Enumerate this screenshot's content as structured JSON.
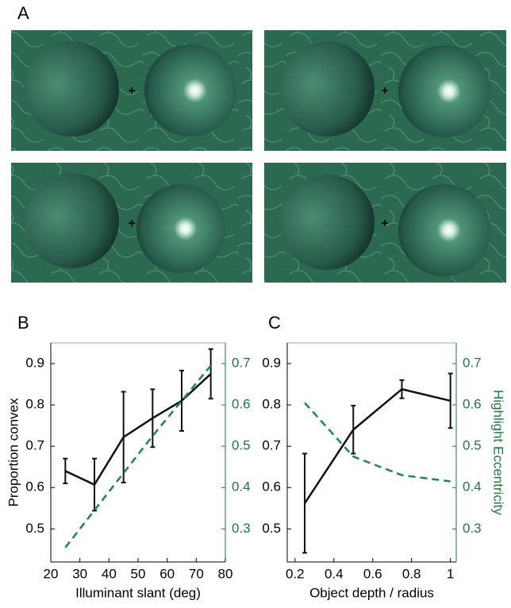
{
  "panel_labels": [
    "A",
    "B",
    "C"
  ],
  "chart_data": [
    {
      "type": "line",
      "xlabel": "Illuminant slant (deg)",
      "ylabel": "Proportion convex",
      "xlim": [
        20,
        80
      ],
      "xticks": [
        20,
        30,
        40,
        50,
        60,
        70,
        80
      ],
      "ylim": [
        0.42,
        0.95
      ],
      "yticks": [
        0.5,
        0.6,
        0.7,
        0.8,
        0.9
      ],
      "y2lim": [
        0.22,
        0.75
      ],
      "y2ticks": [
        0.3,
        0.4,
        0.5,
        0.6,
        0.7
      ],
      "y2color": "#1a7a40",
      "x": [
        25,
        35,
        45,
        55,
        65,
        75
      ],
      "series": [
        {
          "color": "#111111",
          "values": [
            0.64,
            0.607,
            0.722,
            0.768,
            0.81,
            0.875
          ],
          "errors": [
            0.03,
            0.063,
            0.11,
            0.07,
            0.073,
            0.06
          ]
        },
        {
          "color": "#1a8a45",
          "dashed": true,
          "axis": "y2",
          "values": [
            0.255,
            0.345,
            0.435,
            0.525,
            0.61,
            0.695
          ]
        }
      ]
    },
    {
      "type": "line",
      "xlabel": "Object depth / radius",
      "y2label": "Highlight Eccentricity",
      "xlim": [
        0.16,
        1.03
      ],
      "xticks": [
        0.2,
        0.4,
        0.6,
        0.8,
        1
      ],
      "ylim": [
        0.42,
        0.95
      ],
      "yticks": [
        0.5,
        0.6,
        0.7,
        0.8,
        0.9
      ],
      "y2lim": [
        0.22,
        0.75
      ],
      "y2ticks": [
        0.3,
        0.4,
        0.5,
        0.6,
        0.7
      ],
      "y2color": "#1a7a40",
      "x": [
        0.25,
        0.5,
        0.75,
        1.0
      ],
      "series": [
        {
          "color": "#111111",
          "values": [
            0.562,
            0.74,
            0.838,
            0.81
          ],
          "errors": [
            0.12,
            0.058,
            0.022,
            0.066
          ]
        },
        {
          "color": "#1a8a45",
          "dashed": true,
          "axis": "y2",
          "values": [
            0.605,
            0.475,
            0.43,
            0.415
          ]
        }
      ]
    }
  ]
}
